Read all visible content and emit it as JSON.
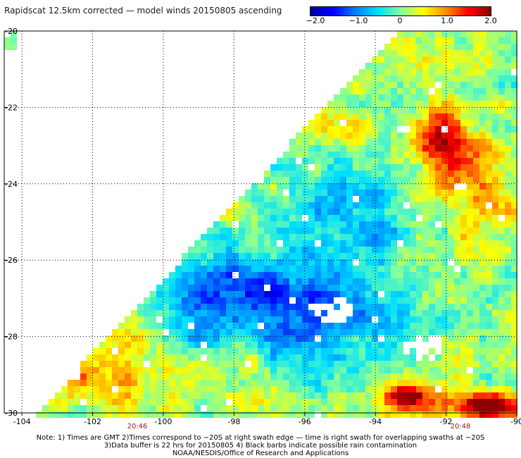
{
  "title": "Rapidscat 12.5km corrected — model winds 20150805 ascending",
  "colorbar": {
    "labels": [
      "−2.0",
      "−1.0",
      "0",
      "1.0",
      "2.0"
    ],
    "values": [
      -2.0,
      -1.0,
      0,
      1.0,
      2.0
    ],
    "colors": [
      "#0000a0",
      "#0000ff",
      "#0080ff",
      "#00e0ff",
      "#80ffa0",
      "#ffff00",
      "#ff9000",
      "#ff0000",
      "#900000"
    ]
  },
  "chart_data": {
    "type": "heatmap",
    "title": "Rapidscat 12.5km corrected — model winds 20150805 ascending",
    "xlim": [
      -104.5,
      -90
    ],
    "ylim": [
      -30,
      -20
    ],
    "xticks": [
      "-104",
      "-102",
      "-100",
      "-98",
      "-96",
      "-94",
      "-92",
      "-90"
    ],
    "yticks": [
      "-20",
      "-22",
      "-24",
      "-26",
      "-28",
      "-30"
    ],
    "value_range": [
      -2.0,
      2.0
    ],
    "grid": true,
    "time_labels": [
      {
        "lon": -102,
        "text": "20:46"
      },
      {
        "lon": -92,
        "text": "20:48"
      }
    ]
  },
  "notes": [
    "Note: 1) Times are GMT 2)Times correspond to −20S at right swath edge — time is right swath for overlapping swaths at −20S",
    "3)Data buffer is 22 hrs for 20150805 4) Black barbs indicate possible rain contamination",
    "NOAA/NESDIS/Office of Research and Applications"
  ]
}
